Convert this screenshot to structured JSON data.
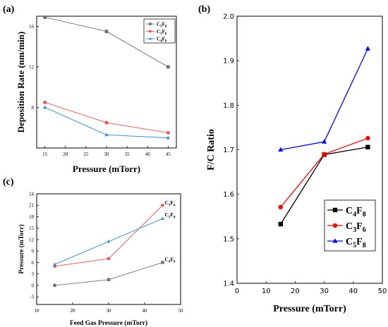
{
  "panel_labels": {
    "a": "(a)",
    "b": "(b)",
    "c": "(c)"
  },
  "chart_data": [
    {
      "id": "a",
      "type": "line",
      "xlabel": "Pressure (mTorr)",
      "ylabel": "Deposition Rate (nm/min)",
      "xlim": [
        13,
        47
      ],
      "ylim": [
        4,
        17
      ],
      "xticks": [
        "15",
        "20",
        "25",
        "30",
        "35",
        "40",
        "45"
      ],
      "yticks": [
        "8",
        "12",
        "16"
      ],
      "grid": false,
      "legend_position": "top-right",
      "series": [
        {
          "name": "C5F8",
          "label_main": "C",
          "label_sub1": "5",
          "label_mid": "F",
          "label_sub2": "8",
          "color": "#707070",
          "marker": "square",
          "x": [
            15,
            30,
            45
          ],
          "y": [
            16.9,
            15.5,
            12.0
          ]
        },
        {
          "name": "C3F6",
          "label_main": "C",
          "label_sub1": "3",
          "label_mid": "F",
          "label_sub2": "6",
          "color": "#f04848",
          "marker": "circle",
          "x": [
            15,
            30,
            45
          ],
          "y": [
            8.5,
            6.5,
            5.5
          ]
        },
        {
          "name": "C4F8",
          "label_main": "C",
          "label_sub1": "4",
          "label_mid": "F",
          "label_sub2": "8",
          "color": "#2a8ae0",
          "marker": "triangle",
          "x": [
            15,
            30,
            45
          ],
          "y": [
            8.0,
            5.3,
            5.0
          ]
        }
      ]
    },
    {
      "id": "b",
      "type": "line",
      "xlabel": "Pressure (mTorr)",
      "ylabel": "F/C Ratio",
      "xlim": [
        0,
        50
      ],
      "ylim": [
        1.4,
        2.0
      ],
      "xticks": [
        "0",
        "10",
        "20",
        "30",
        "40",
        "50"
      ],
      "yticks": [
        "1.4",
        "1.5",
        "1.6",
        "1.7",
        "1.8",
        "1.9",
        "2.0"
      ],
      "grid": false,
      "legend_position": "bottom-right",
      "series": [
        {
          "name": "C4F8",
          "label_main": "C",
          "label_sub1": "4",
          "label_mid": "F",
          "label_sub2": "8",
          "color": "#000000",
          "marker": "square",
          "x": [
            15,
            30,
            45
          ],
          "y": [
            1.533,
            1.689,
            1.706
          ]
        },
        {
          "name": "C3F6",
          "label_main": "C",
          "label_sub1": "3",
          "label_mid": "F",
          "label_sub2": "6",
          "color": "#ff0000",
          "marker": "circle",
          "x": [
            15,
            30,
            45
          ],
          "y": [
            1.571,
            1.69,
            1.726
          ]
        },
        {
          "name": "C5F8",
          "label_main": "C",
          "label_sub1": "5",
          "label_mid": "F",
          "label_sub2": "8",
          "color": "#0000ff",
          "marker": "triangle",
          "x": [
            15,
            30,
            45
          ],
          "y": [
            1.7,
            1.718,
            1.927
          ]
        }
      ]
    },
    {
      "id": "c",
      "type": "line",
      "xlabel": "Feed Gas Pressure (mTorr)",
      "ylabel": "Pressure (mTorr)",
      "xlim": [
        10,
        50
      ],
      "ylim": [
        -5,
        24
      ],
      "xticks": [
        "10",
        "20",
        "30",
        "40",
        "50"
      ],
      "yticks": [
        "-3",
        "0",
        "3",
        "6",
        "9",
        "12",
        "15",
        "18",
        "21",
        "24"
      ],
      "grid": false,
      "legend_position": "line-end labels",
      "series": [
        {
          "name": "C3F6",
          "label_main": "C",
          "label_sub1": "3",
          "label_mid": "F",
          "label_sub2": "6",
          "color": "#f04848",
          "marker": "circle",
          "x": [
            15,
            30,
            45
          ],
          "y": [
            5.0,
            7.0,
            21.0
          ]
        },
        {
          "name": "C5F8",
          "label_main": "C",
          "label_sub1": "5",
          "label_mid": "F",
          "label_sub2": "8",
          "color": "#2a8ae0",
          "marker": "triangle",
          "x": [
            15,
            30,
            45
          ],
          "y": [
            5.5,
            11.5,
            17.5
          ]
        },
        {
          "name": "C4F8",
          "label_main": "C",
          "label_sub1": "4",
          "label_mid": "F",
          "label_sub2": "8",
          "color": "#707070",
          "marker": "square",
          "x": [
            15,
            30,
            45
          ],
          "y": [
            0.0,
            1.5,
            6.0
          ]
        }
      ]
    }
  ]
}
